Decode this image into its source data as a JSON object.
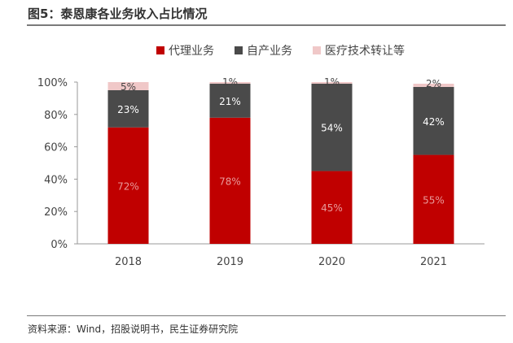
{
  "title": "图5：泰恩康各业务收入占比情况",
  "source": "资料来源：Wind，招股说明书，民生证券研究院",
  "chart_data": {
    "type": "bar",
    "stacked": true,
    "categories": [
      "2018",
      "2019",
      "2020",
      "2021"
    ],
    "series": [
      {
        "name": "代理业务",
        "color": "#c00000",
        "values": [
          72,
          78,
          45,
          55
        ],
        "labels": [
          "72%",
          "78%",
          "45%",
          "55%"
        ]
      },
      {
        "name": "自产业务",
        "color": "#4a4a4a",
        "values": [
          23,
          21,
          54,
          42
        ],
        "labels": [
          "23%",
          "21%",
          "54%",
          "42%"
        ]
      },
      {
        "name": "医疗技术转让等",
        "color": "#f0c8c8",
        "values": [
          5,
          1,
          1,
          2
        ],
        "labels": [
          "5%",
          "1%",
          "1%",
          "2%"
        ]
      }
    ],
    "yticks": [
      "0%",
      "20%",
      "40%",
      "60%",
      "80%",
      "100%"
    ],
    "ylim": [
      0,
      100
    ],
    "legend": "top"
  }
}
